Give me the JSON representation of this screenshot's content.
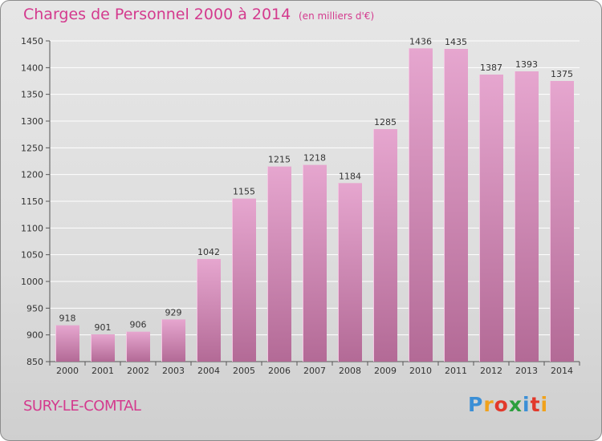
{
  "header": {
    "title": "Charges de Personnel 2000 à 2014",
    "subtitle": "(en milliers d'€)"
  },
  "footer": {
    "commune": "SURY-LE-COMTAL",
    "brand": {
      "text": "Proxiti",
      "letter_colors": [
        "#3b8fd6",
        "#f0a21c",
        "#e2392b",
        "#2c9f3e",
        "#3b8fd6",
        "#e2392b",
        "#f0a21c"
      ]
    }
  },
  "colors": {
    "accent": "#d43a8e",
    "bar_top": "#e6a6cf",
    "bar_bottom": "#b36a96",
    "grid": "#ffffff",
    "axis": "#555555"
  },
  "chart_data": {
    "type": "bar",
    "title": "Charges de Personnel 2000 à 2014",
    "subtitle": "(en milliers d'€)",
    "categories": [
      "2000",
      "2001",
      "2002",
      "2003",
      "2004",
      "2005",
      "2006",
      "2007",
      "2008",
      "2009",
      "2010",
      "2011",
      "2012",
      "2013",
      "2014"
    ],
    "values": [
      918,
      901,
      906,
      929,
      1042,
      1155,
      1215,
      1218,
      1184,
      1285,
      1436,
      1435,
      1387,
      1393,
      1375
    ],
    "ylim": [
      850,
      1450
    ],
    "yticks": [
      850,
      900,
      950,
      1000,
      1050,
      1100,
      1150,
      1200,
      1250,
      1300,
      1350,
      1400,
      1450
    ],
    "grid": true,
    "xlabel": "",
    "ylabel": ""
  }
}
